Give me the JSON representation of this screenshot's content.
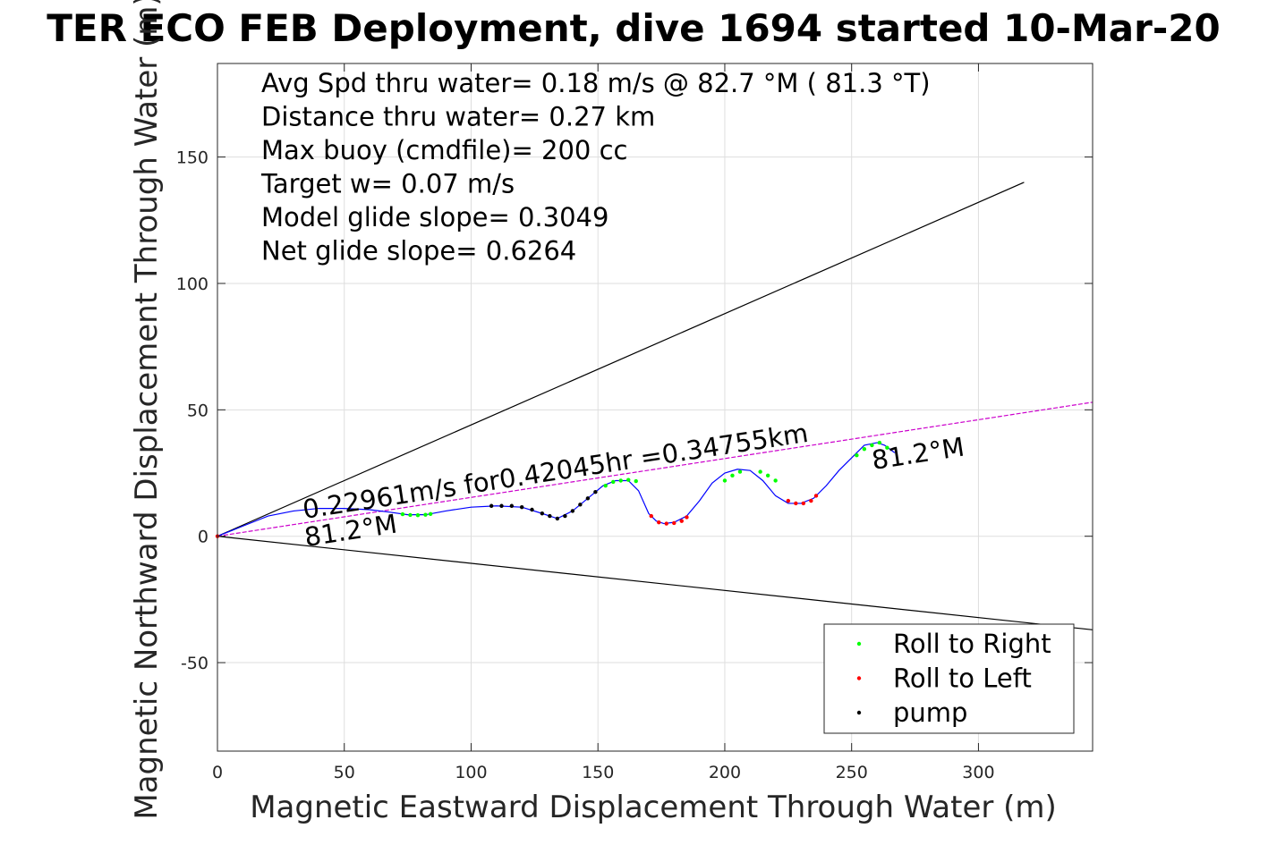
{
  "title": "TER ECO FEB Deployment, dive 1694 started 10-Mar-20",
  "chart_data": {
    "type": "line",
    "xlabel": "Magnetic Eastward Displacement Through Water (m)",
    "ylabel": "Magnetic Northward Displacement Through Water (m)",
    "xlim": [
      0,
      345
    ],
    "ylim": [
      -85,
      187
    ],
    "xticks": [
      0,
      50,
      100,
      150,
      200,
      250,
      300
    ],
    "yticks": [
      -50,
      0,
      50,
      100,
      150
    ],
    "grid": true,
    "legend_position": "bottom-right",
    "stats_text": [
      "Avg Spd thru water=  0.18 m/s @  82.7 °M ( 81.3 °T)",
      "Distance thru water=  0.27 km",
      "Max buoy (cmdfile)= 200 cc",
      "Target w= 0.07 m/s",
      "Model glide slope= 0.3049",
      "Net glide slope= 0.6264"
    ],
    "annotations": {
      "speed_label": "0.22961m/s for0.42045hr =0.34755km",
      "heading_start": "81.2°M",
      "heading_end": "81.2°M"
    },
    "reference_lines": [
      {
        "name": "upper-bound",
        "color": "#000000",
        "x": [
          0,
          318
        ],
        "y": [
          0,
          140
        ]
      },
      {
        "name": "lower-bound",
        "color": "#000000",
        "x": [
          0,
          345
        ],
        "y": [
          0,
          -37
        ]
      },
      {
        "name": "heading-line",
        "color": "#cc00cc",
        "x": [
          0,
          345
        ],
        "y": [
          0,
          53
        ]
      }
    ],
    "track": {
      "color": "#0000ff",
      "x": [
        0,
        10,
        20,
        30,
        40,
        50,
        60,
        68,
        75,
        82,
        90,
        100,
        110,
        120,
        128,
        134,
        140,
        146,
        152,
        157,
        162,
        166,
        170,
        173,
        176,
        180,
        185,
        190,
        195,
        200,
        205,
        210,
        215,
        220,
        225,
        230,
        235,
        240,
        245,
        250,
        255,
        260,
        263,
        267
      ],
      "y": [
        0,
        4,
        8,
        10,
        11,
        11,
        10.5,
        9.5,
        8.5,
        8.5,
        10,
        11.5,
        12,
        11.5,
        9,
        7,
        10,
        15,
        20,
        22,
        22,
        18,
        9,
        6,
        5,
        5.5,
        8,
        14,
        21,
        25,
        26.5,
        26,
        22,
        16,
        13,
        13,
        15,
        20,
        26,
        31,
        36,
        37,
        36,
        33
      ]
    },
    "series": [
      {
        "name": "Roll to Right",
        "color": "#00ff00",
        "x": [
          73,
          76,
          79,
          82,
          84,
          153,
          156,
          159,
          162,
          165,
          200,
          203,
          206,
          214,
          217,
          220,
          252,
          255,
          258,
          261,
          264
        ],
        "y": [
          8.7,
          8.4,
          8.3,
          8.5,
          8.8,
          20,
          21.5,
          22,
          22.3,
          21.8,
          22,
          24,
          25.5,
          25.5,
          24,
          22,
          32,
          34.5,
          36,
          37,
          35
        ]
      },
      {
        "name": "Roll to Left",
        "color": "#ff0000",
        "x": [
          0,
          171,
          174,
          177,
          180,
          183,
          185,
          225,
          228,
          231,
          234,
          236
        ],
        "y": [
          0,
          8,
          5.5,
          5,
          5.2,
          6,
          7.5,
          14,
          13,
          13,
          14,
          16
        ]
      },
      {
        "name": "pump",
        "color": "#000000",
        "x": [
          108,
          112,
          116,
          120,
          124,
          128,
          131,
          134,
          137,
          140,
          143,
          146,
          149
        ],
        "y": [
          12,
          12,
          12,
          11.5,
          10.5,
          9,
          8,
          7,
          8,
          10,
          12.5,
          15,
          17.5
        ]
      }
    ]
  }
}
